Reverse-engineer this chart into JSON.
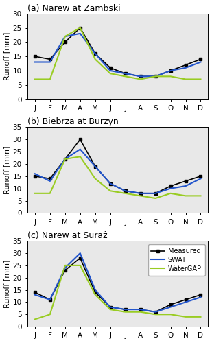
{
  "subplots": [
    {
      "title": "(a) Narew at Zambski",
      "ylim": [
        0,
        30
      ],
      "yticks": [
        0,
        5,
        10,
        15,
        20,
        25,
        30
      ],
      "measured": [
        15,
        14,
        20,
        25,
        16,
        11,
        9,
        8,
        8,
        10,
        12,
        14
      ],
      "swat": [
        13,
        13,
        22,
        23,
        16,
        10,
        9,
        8,
        8,
        10,
        11,
        13
      ],
      "watergap": [
        7,
        7,
        22,
        25,
        14,
        9,
        8,
        7,
        8,
        8,
        7,
        7
      ]
    },
    {
      "title": "(b) Biebrza at Burzyn",
      "ylim": [
        0,
        35
      ],
      "yticks": [
        0,
        5,
        10,
        15,
        20,
        25,
        30,
        35
      ],
      "measured": [
        15,
        14,
        22,
        30,
        19,
        12,
        9,
        8,
        8,
        11,
        13,
        15
      ],
      "swat": [
        16,
        13,
        22,
        26,
        19,
        12,
        9,
        8,
        8,
        10,
        11,
        14
      ],
      "watergap": [
        8,
        8,
        22,
        23,
        14,
        9,
        8,
        7,
        6,
        8,
        7,
        7
      ]
    },
    {
      "title": "(c) Narew at Suraż",
      "ylim": [
        0,
        35
      ],
      "yticks": [
        0,
        5,
        10,
        15,
        20,
        25,
        30,
        35
      ],
      "measured": [
        14,
        11,
        23,
        28,
        14,
        8,
        7,
        7,
        6,
        9,
        11,
        13
      ],
      "swat": [
        13,
        11,
        24,
        30,
        15,
        8,
        7,
        7,
        6,
        8,
        10,
        12
      ],
      "watergap": [
        3,
        5,
        25,
        25,
        13,
        7,
        6,
        6,
        5,
        5,
        4,
        4
      ]
    }
  ],
  "months": [
    "J",
    "F",
    "M",
    "A",
    "M",
    "J",
    "J",
    "A",
    "S",
    "O",
    "N",
    "D"
  ],
  "colors": {
    "measured": "#000000",
    "swat": "#2255cc",
    "watergap": "#99cc22"
  },
  "facecolor": "#e8e8e8",
  "fig_facecolor": "#ffffff",
  "ylabel": "Runoff [mm]",
  "legend_labels": [
    "Measured",
    "SWAT",
    "WaterGAP"
  ],
  "legend_loc": "upper right",
  "title_fontsize": 9,
  "tick_fontsize": 7.5,
  "ylabel_fontsize": 8
}
